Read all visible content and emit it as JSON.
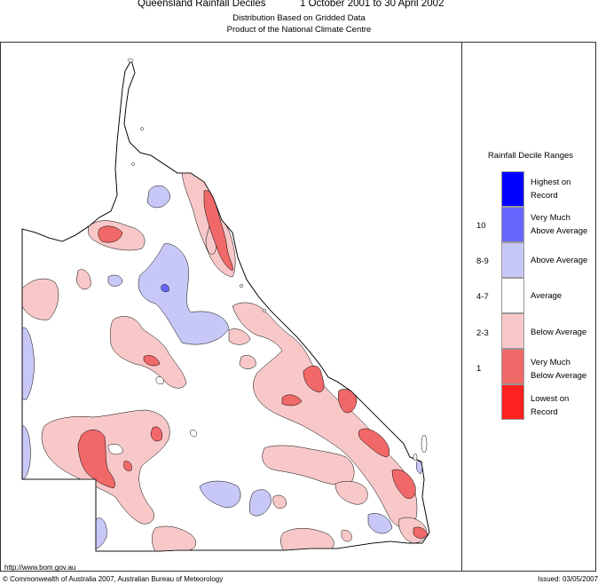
{
  "header": {
    "title": "Queensland Rainfall Deciles",
    "period": "1 October 2001 to 30 April 2002",
    "subtitle1": "Distribution Based on Gridded Data",
    "subtitle2": "Product of the National Climate Centre"
  },
  "legend": {
    "title": "Rainfall Decile Ranges",
    "items": [
      {
        "label1": "Highest on",
        "label2": "Record",
        "range": "",
        "color": "#0000ff"
      },
      {
        "label1": "Very Much",
        "label2": "Above Average",
        "range": "10",
        "color": "#6666ff"
      },
      {
        "label1": "Above Average",
        "label2": "",
        "range": "8-9",
        "color": "#c8c8f8"
      },
      {
        "label1": "Average",
        "label2": "",
        "range": "4-7",
        "color": "#ffffff"
      },
      {
        "label1": "Below Average",
        "label2": "",
        "range": "2-3",
        "color": "#f8c8c8"
      },
      {
        "label1": "Very Much",
        "label2": "Below Average",
        "range": "1",
        "color": "#f06868"
      },
      {
        "label1": "Lowest on",
        "label2": "Record",
        "range": "",
        "color": "#ff2020"
      }
    ]
  },
  "footer": {
    "url": "http://www.bom.gov.au",
    "copyright": "© Commonwealth of Australia 2007, Australian Bureau of Meteorology",
    "issued": "Issued: 03/05/2007"
  },
  "colors": {
    "above": "#c8c8f8",
    "very_above": "#6666ff",
    "below": "#f8c8c8",
    "very_below": "#f06868",
    "lowest": "#ff2020"
  }
}
